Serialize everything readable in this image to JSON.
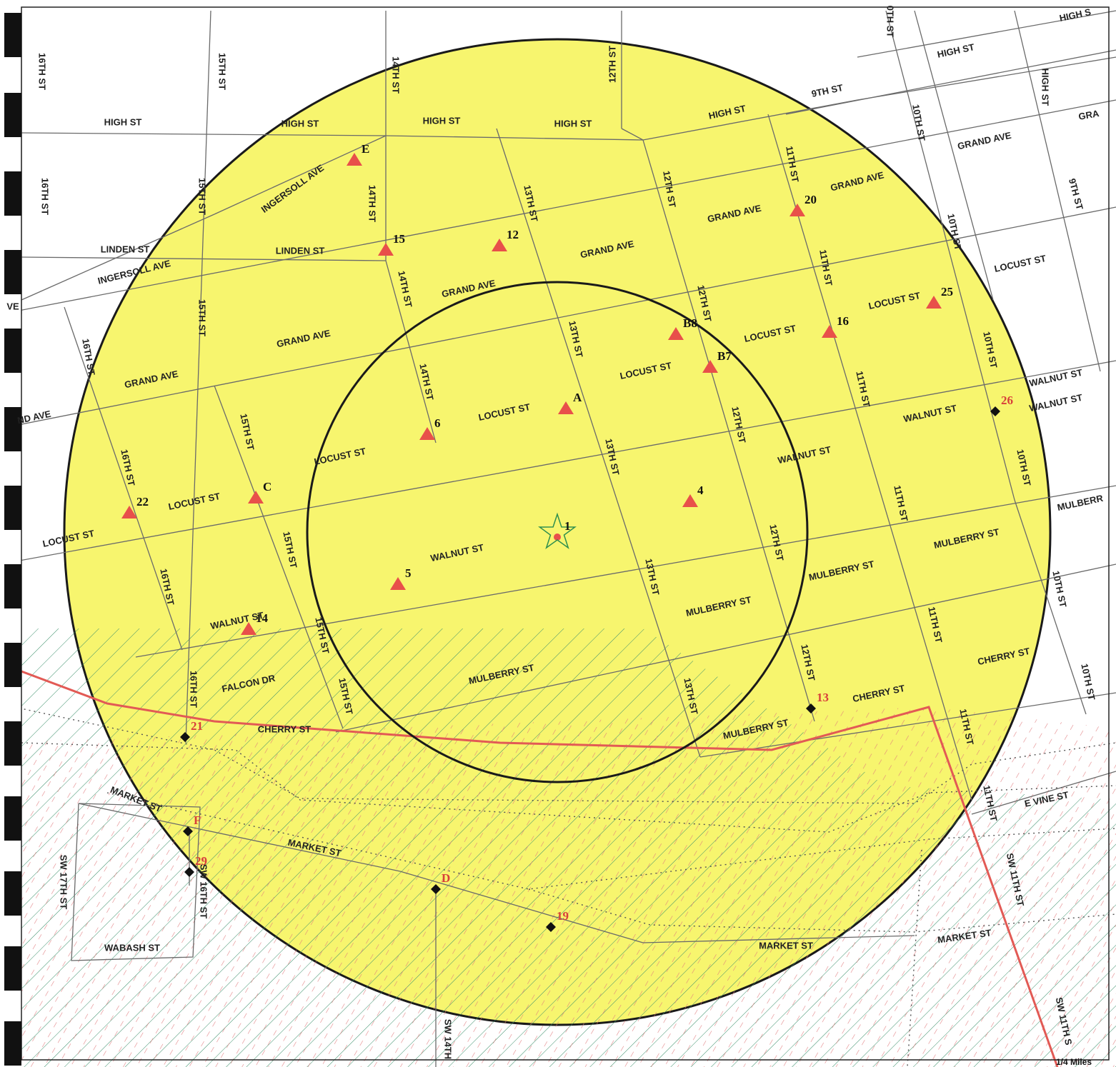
{
  "colors": {
    "buffer_fill": "#f7f56e",
    "ring_stroke": "#1a1a1a",
    "street_line": "#6a6a6a",
    "site_triangle": "#e8504a",
    "site_diamond": "#111111",
    "red_label": "#d8403a",
    "boundary_line": "#e25a55",
    "hatch_green": "#3a8f6a",
    "hatch_red": "#e0787a",
    "binding_tab": "#111111"
  },
  "icons": {
    "center_site": "star-icon",
    "triangle_site": "triangle-marker-icon",
    "diamond_site": "diamond-marker-icon"
  },
  "streets": [
    {
      "label": "16TH ST"
    },
    {
      "label": "15TH ST"
    },
    {
      "label": "14TH ST"
    },
    {
      "label": "12TH ST"
    },
    {
      "label": "0TH ST"
    },
    {
      "label": "HIGH S"
    },
    {
      "label": "HIGH ST"
    },
    {
      "label": "HIGH ST"
    },
    {
      "label": "9TH ST"
    },
    {
      "label": "10TH ST"
    },
    {
      "label": "GRA"
    },
    {
      "label": "HIGH ST"
    },
    {
      "label": "HIGH ST"
    },
    {
      "label": "HIGH ST"
    },
    {
      "label": "HIGH ST"
    },
    {
      "label": "HIGH ST"
    },
    {
      "label": "GRAND AVE"
    },
    {
      "label": "9TH ST"
    },
    {
      "label": "11TH ST"
    },
    {
      "label": "GRAND AVE"
    },
    {
      "label": "16TH ST"
    },
    {
      "label": "15TH ST"
    },
    {
      "label": "INGERSOLL AVE"
    },
    {
      "label": "14TH ST"
    },
    {
      "label": "13TH ST"
    },
    {
      "label": "12TH ST"
    },
    {
      "label": "GRAND AVE"
    },
    {
      "label": "10TH ST"
    },
    {
      "label": "LINDEN ST"
    },
    {
      "label": "LINDEN ST"
    },
    {
      "label": "GRAND AVE"
    },
    {
      "label": "11TH ST"
    },
    {
      "label": "LOCUST ST"
    },
    {
      "label": "INGERSOLL AVE"
    },
    {
      "label": "14TH ST"
    },
    {
      "label": "GRAND AVE"
    },
    {
      "label": "12TH ST"
    },
    {
      "label": "LOCUST ST"
    },
    {
      "label": "VE"
    },
    {
      "label": "15TH ST"
    },
    {
      "label": "13TH ST"
    },
    {
      "label": "LOCUST ST"
    },
    {
      "label": "GRAND AVE"
    },
    {
      "label": "16TH ST"
    },
    {
      "label": "LOCUST ST"
    },
    {
      "label": "10TH ST"
    },
    {
      "label": "GRAND AVE"
    },
    {
      "label": "14TH ST"
    },
    {
      "label": "11TH ST"
    },
    {
      "label": "WALNUT ST"
    },
    {
      "label": "ND AVE"
    },
    {
      "label": "LOCUST ST"
    },
    {
      "label": "12TH ST"
    },
    {
      "label": "WALNUT ST"
    },
    {
      "label": "15TH ST"
    },
    {
      "label": "LOCUST ST"
    },
    {
      "label": "13TH ST"
    },
    {
      "label": "WALNUT ST"
    },
    {
      "label": "10TH ST"
    },
    {
      "label": "16TH ST"
    },
    {
      "label": "LOCUST ST"
    },
    {
      "label": "11TH ST"
    },
    {
      "label": "WALNUT ST"
    },
    {
      "label": "MULBERR"
    },
    {
      "label": "LOCUST ST"
    },
    {
      "label": "15TH ST"
    },
    {
      "label": "12TH ST"
    },
    {
      "label": "MULBERRY ST"
    },
    {
      "label": "WALNUT ST"
    },
    {
      "label": "13TH ST"
    },
    {
      "label": "MULBERRY ST"
    },
    {
      "label": "10TH ST"
    },
    {
      "label": "16TH ST"
    },
    {
      "label": "MULBERRY ST"
    },
    {
      "label": "11TH ST"
    },
    {
      "label": "WALNUT ST"
    },
    {
      "label": "15TH ST"
    },
    {
      "label": "12TH ST"
    },
    {
      "label": "CHERRY ST"
    },
    {
      "label": "10TH ST"
    },
    {
      "label": "FALCON DR"
    },
    {
      "label": "16TH ST"
    },
    {
      "label": "MULBERRY ST"
    },
    {
      "label": "15TH ST"
    },
    {
      "label": "13TH ST"
    },
    {
      "label": "CHERRY ST"
    },
    {
      "label": "11TH ST"
    },
    {
      "label": "MULBERRY ST"
    },
    {
      "label": "CHERRY ST"
    },
    {
      "label": "MARKET ST"
    },
    {
      "label": "11TH ST"
    },
    {
      "label": "E VINE ST"
    },
    {
      "label": "MARKET ST"
    },
    {
      "label": "SW 17TH ST"
    },
    {
      "label": "SW 16TH ST"
    },
    {
      "label": "SW 11TH ST"
    },
    {
      "label": "MARKET ST"
    },
    {
      "label": "MARKET ST"
    },
    {
      "label": "WABASH ST"
    },
    {
      "label": "SW 14TH"
    },
    {
      "label": "SW 11TH S"
    }
  ],
  "sites": [
    {
      "id": "1",
      "type": "star"
    },
    {
      "id": "E",
      "type": "triangle"
    },
    {
      "id": "15",
      "type": "triangle"
    },
    {
      "id": "12",
      "type": "triangle"
    },
    {
      "id": "20",
      "type": "triangle"
    },
    {
      "id": "25",
      "type": "triangle"
    },
    {
      "id": "B8",
      "type": "triangle"
    },
    {
      "id": "16",
      "type": "triangle"
    },
    {
      "id": "B7",
      "type": "triangle"
    },
    {
      "id": "A",
      "type": "triangle"
    },
    {
      "id": "6",
      "type": "triangle"
    },
    {
      "id": "C",
      "type": "triangle"
    },
    {
      "id": "22",
      "type": "triangle"
    },
    {
      "id": "4",
      "type": "triangle"
    },
    {
      "id": "5",
      "type": "triangle"
    },
    {
      "id": "14",
      "type": "triangle"
    },
    {
      "id": "26",
      "type": "diamond"
    },
    {
      "id": "13",
      "type": "diamond"
    },
    {
      "id": "21",
      "type": "diamond"
    },
    {
      "id": "F",
      "type": "diamond"
    },
    {
      "id": "29",
      "type": "diamond"
    },
    {
      "id": "D",
      "type": "diamond"
    },
    {
      "id": "19",
      "type": "diamond"
    }
  ],
  "scale": {
    "label": "1/4 Miles"
  }
}
